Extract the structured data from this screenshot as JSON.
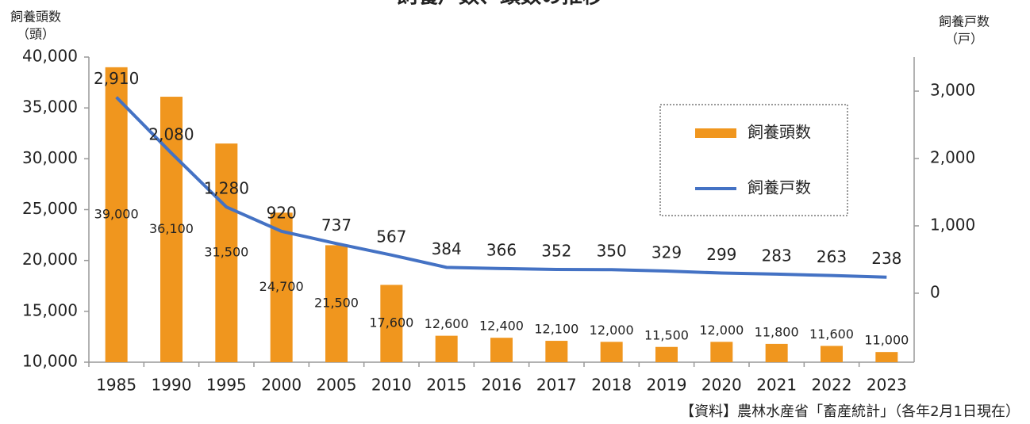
{
  "chart_data": {
    "type": "bar_line",
    "title": "飼養戸数、頭数の推移",
    "y_label": "飼養頭数",
    "y_unit": "（頭）",
    "y2_label": "飼養戸数",
    "y2_unit": "（戸）",
    "source": "【資料】農林水産省「畜産統計」（各年2月1日現在）",
    "categories": [
      "1985",
      "1990",
      "1995",
      "2000",
      "2005",
      "2010",
      "2015",
      "2016",
      "2017",
      "2018",
      "2019",
      "2020",
      "2021",
      "2022",
      "2023"
    ],
    "series": [
      {
        "name": "飼養頭数",
        "type": "bar",
        "color": "#f0961e",
        "values": [
          39000,
          36100,
          31500,
          24700,
          21500,
          17600,
          12600,
          12400,
          12100,
          12000,
          11500,
          12000,
          11800,
          11600,
          11000
        ],
        "value_labels": [
          "39,000",
          "36,100",
          "31,500",
          "24,700",
          "21,500",
          "17,600",
          "12,600",
          "12,400",
          "12,100",
          "12,000",
          "11,500",
          "12,000",
          "11,800",
          "11,600",
          "11,000"
        ]
      },
      {
        "name": "飼養戸数",
        "type": "line",
        "color": "#4472c4",
        "axis": "y2",
        "values": [
          2910,
          2080,
          1280,
          920,
          737,
          567,
          384,
          366,
          352,
          350,
          329,
          299,
          283,
          263,
          238
        ],
        "value_labels": [
          "2,910",
          "2,080",
          "1,280",
          "920",
          "737",
          "567",
          "384",
          "366",
          "352",
          "350",
          "329",
          "299",
          "283",
          "263",
          "238"
        ]
      }
    ],
    "ylim": [
      10000,
      40000
    ],
    "yticks": [
      {
        "value": 10000,
        "label": "10,000"
      },
      {
        "value": 15000,
        "label": "15,000"
      },
      {
        "value": 20000,
        "label": "20,000"
      },
      {
        "value": 25000,
        "label": "25,000"
      },
      {
        "value": 30000,
        "label": "30,000"
      },
      {
        "value": 35000,
        "label": "35,000"
      },
      {
        "value": 40000,
        "label": "40,000"
      }
    ],
    "y2lim": [
      -1024,
      3506
    ],
    "y2ticks": [
      0,
      {
        "value": 1000,
        "label": "1,000"
      },
      {
        "value": 2000,
        "label": "2,000"
      },
      {
        "value": 3000,
        "label": "3,000"
      }
    ],
    "legend": "upper right"
  }
}
